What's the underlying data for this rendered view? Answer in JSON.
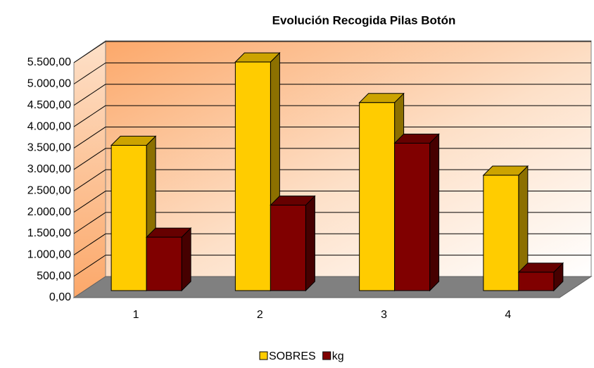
{
  "chart_data": {
    "type": "bar3d",
    "title": "Evolución Recogida Pilas Botón",
    "categories": [
      "1",
      "2",
      "3",
      "4"
    ],
    "series": [
      {
        "name": "SOBRES",
        "color": "#ffcc00",
        "values": [
          3400,
          5350,
          4400,
          2700
        ]
      },
      {
        "name": "kg",
        "color": "#800000",
        "values": [
          1250,
          2000,
          3450,
          430
        ]
      }
    ],
    "ylim": [
      0,
      5500
    ],
    "yticks": [
      {
        "value": 0,
        "label": "0,00"
      },
      {
        "value": 500,
        "label": "500,00"
      },
      {
        "value": 1000,
        "label": "1.000,00"
      },
      {
        "value": 1500,
        "label": "1.500,00"
      },
      {
        "value": 2000,
        "label": "2.000,00"
      },
      {
        "value": 2500,
        "label": "2.500,00"
      },
      {
        "value": 3000,
        "label": "3.000,00"
      },
      {
        "value": 3500,
        "label": "3.500,00"
      },
      {
        "value": 4000,
        "label": "4.000,00"
      },
      {
        "value": 4500,
        "label": "4.500,00"
      },
      {
        "value": 5000,
        "label": "5.000,00"
      },
      {
        "value": 5500,
        "label": "5.500,00"
      }
    ],
    "grid": true,
    "legend": "bottom"
  }
}
